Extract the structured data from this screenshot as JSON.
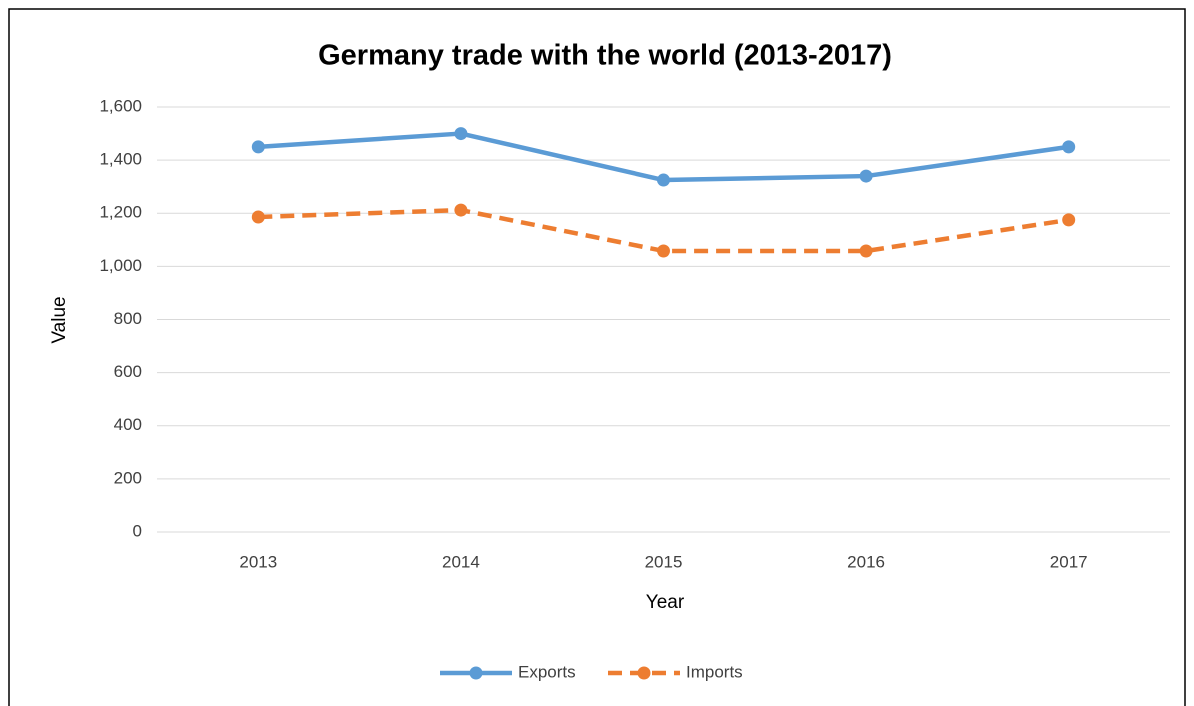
{
  "chart_data": {
    "type": "line",
    "title": "Germany trade with the world (2013-2017)",
    "x_label": "Year",
    "y_label": "Value",
    "categories": [
      "2013",
      "2014",
      "2015",
      "2016",
      "2017"
    ],
    "series": [
      {
        "name": "Exports",
        "color": "#5b9bd5",
        "dash": false,
        "values": [
          1450,
          1500,
          1325,
          1340,
          1450
        ]
      },
      {
        "name": "Imports",
        "color": "#ed7d31",
        "dash": true,
        "values": [
          1186,
          1212,
          1058,
          1058,
          1175
        ]
      }
    ],
    "ylim": [
      0,
      1600
    ],
    "yticks": [
      0,
      200,
      400,
      600,
      800,
      {
        "value": 1000,
        "label": "1,000"
      },
      {
        "value": 1200,
        "label": "1,200"
      },
      {
        "value": 1400,
        "label": "1,400"
      },
      {
        "value": 1600,
        "label": "1,600"
      }
    ],
    "grid": true,
    "legend": "bottom"
  }
}
